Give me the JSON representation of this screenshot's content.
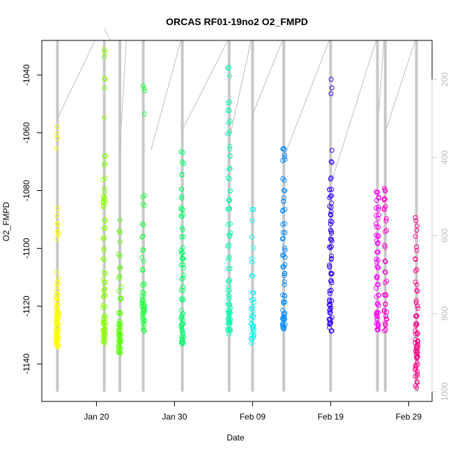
{
  "chart_data": {
    "type": "scatter",
    "title": "ORCAS RF01-19no2 O2_FMPD",
    "xlabel": "Date",
    "ylabel": "O2_FMPD",
    "x_ticks": [
      "Jan 20",
      "Jan 30",
      "Feb 09",
      "Feb 19",
      "Feb 29"
    ],
    "y_ticks": [
      -1040,
      -1060,
      -1080,
      -1100,
      -1120,
      -1140
    ],
    "y2_ticks": [
      200,
      400,
      600,
      800,
      1000
    ],
    "ylim": [
      -1153,
      -1028
    ],
    "y2lim": [
      1025,
      100
    ],
    "xlim": [
      "2016-01-13",
      "2016-03-03"
    ],
    "grid": false,
    "legend": "none",
    "series": [
      {
        "date": "2016-01-15",
        "color": "#ffff00",
        "points": [
          [
            -1058,
            1
          ],
          [
            -1060,
            1
          ],
          [
            -1062,
            1
          ],
          [
            -1066,
            1
          ],
          [
            -1086,
            1
          ],
          [
            -1089,
            1
          ],
          [
            -1091,
            2
          ],
          [
            -1094,
            2
          ],
          [
            -1096,
            2
          ],
          [
            -1108,
            1
          ],
          [
            -1110,
            1
          ],
          [
            -1112,
            2
          ],
          [
            -1114,
            2
          ],
          [
            -1116,
            3
          ],
          [
            -1118,
            4
          ],
          [
            -1120,
            5
          ],
          [
            -1122,
            6
          ],
          [
            -1124,
            8
          ],
          [
            -1126,
            8
          ],
          [
            -1128,
            9
          ],
          [
            -1130,
            10
          ],
          [
            -1132,
            8
          ],
          [
            -1134,
            5
          ]
        ]
      },
      {
        "date": "2016-01-21",
        "color": "#88ff00",
        "points": [
          [
            -1032,
            2
          ],
          [
            -1034,
            1
          ],
          [
            -1042,
            2
          ],
          [
            -1045,
            1
          ],
          [
            -1054,
            1
          ],
          [
            -1068,
            2
          ],
          [
            -1071,
            2
          ],
          [
            -1076,
            2
          ],
          [
            -1080,
            2
          ],
          [
            -1082,
            3
          ],
          [
            -1084,
            3
          ],
          [
            -1086,
            2
          ],
          [
            -1090,
            2
          ],
          [
            -1093,
            2
          ],
          [
            -1096,
            2
          ],
          [
            -1100,
            2
          ],
          [
            -1104,
            2
          ],
          [
            -1108,
            2
          ],
          [
            -1111,
            3
          ],
          [
            -1114,
            3
          ],
          [
            -1117,
            3
          ],
          [
            -1120,
            3
          ],
          [
            -1124,
            4
          ],
          [
            -1126,
            5
          ],
          [
            -1128,
            6
          ],
          [
            -1130,
            6
          ],
          [
            -1132,
            5
          ]
        ]
      },
      {
        "date": "2016-01-23",
        "color": "#55ff00",
        "points": [
          [
            -1090,
            1
          ],
          [
            -1094,
            2
          ],
          [
            -1098,
            1
          ],
          [
            -1102,
            2
          ],
          [
            -1106,
            2
          ],
          [
            -1110,
            2
          ],
          [
            -1114,
            2
          ],
          [
            -1118,
            3
          ],
          [
            -1122,
            3
          ],
          [
            -1126,
            5
          ],
          [
            -1128,
            6
          ],
          [
            -1130,
            7
          ],
          [
            -1132,
            6
          ],
          [
            -1134,
            5
          ],
          [
            -1136,
            4
          ]
        ]
      },
      {
        "date": "2016-01-26",
        "color": "#22ff44",
        "points": [
          [
            -1044,
            2
          ],
          [
            -1046,
            1
          ],
          [
            -1053,
            1
          ],
          [
            -1082,
            2
          ],
          [
            -1085,
            2
          ],
          [
            -1092,
            2
          ],
          [
            -1096,
            2
          ],
          [
            -1100,
            2
          ],
          [
            -1104,
            2
          ],
          [
            -1108,
            2
          ],
          [
            -1112,
            3
          ],
          [
            -1116,
            4
          ],
          [
            -1118,
            5
          ],
          [
            -1120,
            6
          ],
          [
            -1122,
            6
          ],
          [
            -1124,
            4
          ],
          [
            -1126,
            3
          ],
          [
            -1128,
            2
          ],
          [
            -1129,
            2
          ]
        ]
      },
      {
        "date": "2016-01-31",
        "color": "#00ff66",
        "points": [
          [
            -1067,
            2
          ],
          [
            -1070,
            2
          ],
          [
            -1074,
            2
          ],
          [
            -1079,
            2
          ],
          [
            -1082,
            2
          ],
          [
            -1086,
            3
          ],
          [
            -1089,
            3
          ],
          [
            -1093,
            2
          ],
          [
            -1096,
            2
          ],
          [
            -1100,
            2
          ],
          [
            -1102,
            3
          ],
          [
            -1104,
            3
          ],
          [
            -1106,
            3
          ],
          [
            -1110,
            3
          ],
          [
            -1114,
            3
          ],
          [
            -1118,
            3
          ],
          [
            -1122,
            3
          ],
          [
            -1124,
            4
          ],
          [
            -1126,
            4
          ],
          [
            -1128,
            4
          ],
          [
            -1130,
            4
          ],
          [
            -1132,
            4
          ],
          [
            -1133,
            3
          ]
        ]
      },
      {
        "date": "2016-02-06",
        "color": "#00ffb0",
        "points": [
          [
            -1038,
            2
          ],
          [
            -1041,
            1
          ],
          [
            -1050,
            2
          ],
          [
            -1052,
            2
          ],
          [
            -1056,
            2
          ],
          [
            -1060,
            2
          ],
          [
            -1065,
            2
          ],
          [
            -1068,
            2
          ],
          [
            -1072,
            2
          ],
          [
            -1076,
            2
          ],
          [
            -1080,
            2
          ],
          [
            -1083,
            3
          ],
          [
            -1087,
            3
          ],
          [
            -1091,
            2
          ],
          [
            -1095,
            3
          ],
          [
            -1099,
            2
          ],
          [
            -1103,
            2
          ],
          [
            -1107,
            2
          ],
          [
            -1111,
            3
          ],
          [
            -1114,
            3
          ],
          [
            -1117,
            3
          ],
          [
            -1120,
            4
          ],
          [
            -1122,
            5
          ],
          [
            -1124,
            5
          ],
          [
            -1126,
            5
          ],
          [
            -1128,
            4
          ],
          [
            -1129,
            3
          ]
        ]
      },
      {
        "date": "2016-02-09",
        "color": "#00ffee",
        "points": [
          [
            -1087,
            2
          ],
          [
            -1090,
            1
          ],
          [
            -1096,
            1
          ],
          [
            -1100,
            1
          ],
          [
            -1104,
            2
          ],
          [
            -1110,
            2
          ],
          [
            -1116,
            2
          ],
          [
            -1118,
            3
          ],
          [
            -1121,
            3
          ],
          [
            -1124,
            4
          ],
          [
            -1126,
            4
          ],
          [
            -1128,
            4
          ],
          [
            -1130,
            4
          ],
          [
            -1132,
            3
          ]
        ]
      },
      {
        "date": "2016-02-13",
        "color": "#0088ff",
        "points": [
          [
            -1066,
            3
          ],
          [
            -1068,
            2
          ],
          [
            -1070,
            2
          ],
          [
            -1076,
            2
          ],
          [
            -1080,
            2
          ],
          [
            -1083,
            3
          ],
          [
            -1087,
            3
          ],
          [
            -1091,
            2
          ],
          [
            -1094,
            2
          ],
          [
            -1097,
            2
          ],
          [
            -1100,
            2
          ],
          [
            -1103,
            3
          ],
          [
            -1106,
            3
          ],
          [
            -1109,
            3
          ],
          [
            -1112,
            2
          ],
          [
            -1116,
            3
          ],
          [
            -1119,
            3
          ],
          [
            -1122,
            4
          ],
          [
            -1124,
            5
          ],
          [
            -1126,
            5
          ],
          [
            -1128,
            4
          ]
        ]
      },
      {
        "date": "2016-02-19",
        "color": "#3300ff",
        "points": [
          [
            -1042,
            1
          ],
          [
            -1044,
            1
          ],
          [
            -1046,
            1
          ],
          [
            -1066,
            1
          ],
          [
            -1070,
            2
          ],
          [
            -1076,
            2
          ],
          [
            -1079,
            3
          ],
          [
            -1082,
            3
          ],
          [
            -1085,
            3
          ],
          [
            -1088,
            3
          ],
          [
            -1091,
            3
          ],
          [
            -1094,
            3
          ],
          [
            -1097,
            3
          ],
          [
            -1100,
            3
          ],
          [
            -1103,
            3
          ],
          [
            -1106,
            3
          ],
          [
            -1109,
            3
          ],
          [
            -1112,
            3
          ],
          [
            -1115,
            3
          ],
          [
            -1118,
            3
          ],
          [
            -1120,
            4
          ],
          [
            -1122,
            4
          ],
          [
            -1124,
            4
          ],
          [
            -1126,
            4
          ],
          [
            -1128,
            3
          ]
        ]
      },
      {
        "date": "2016-02-25",
        "color": "#ff00ff",
        "points": [
          [
            -1080,
            3
          ],
          [
            -1083,
            3
          ],
          [
            -1086,
            3
          ],
          [
            -1089,
            3
          ],
          [
            -1092,
            3
          ],
          [
            -1095,
            3
          ],
          [
            -1098,
            3
          ],
          [
            -1101,
            3
          ],
          [
            -1104,
            3
          ],
          [
            -1107,
            3
          ],
          [
            -1110,
            3
          ],
          [
            -1113,
            3
          ],
          [
            -1116,
            3
          ],
          [
            -1119,
            3
          ],
          [
            -1122,
            4
          ],
          [
            -1124,
            4
          ],
          [
            -1126,
            4
          ],
          [
            -1128,
            4
          ]
        ]
      },
      {
        "date": "2016-02-26",
        "color": "#ff00cc",
        "points": [
          [
            -1080,
            3
          ],
          [
            -1083,
            3
          ],
          [
            -1086,
            3
          ],
          [
            -1090,
            2
          ],
          [
            -1094,
            2
          ],
          [
            -1099,
            2
          ],
          [
            -1104,
            2
          ],
          [
            -1108,
            2
          ],
          [
            -1112,
            2
          ],
          [
            -1116,
            3
          ],
          [
            -1119,
            3
          ],
          [
            -1122,
            3
          ],
          [
            -1124,
            3
          ],
          [
            -1126,
            3
          ],
          [
            -1128,
            2
          ]
        ]
      },
      {
        "date": "2016-03-01",
        "color": "#ff0088",
        "points": [
          [
            -1090,
            2
          ],
          [
            -1093,
            2
          ],
          [
            -1096,
            1
          ],
          [
            -1100,
            2
          ],
          [
            -1104,
            2
          ],
          [
            -1108,
            2
          ],
          [
            -1112,
            2
          ],
          [
            -1115,
            2
          ],
          [
            -1118,
            2
          ],
          [
            -1120,
            2
          ],
          [
            -1123,
            3
          ],
          [
            -1126,
            4
          ],
          [
            -1129,
            4
          ],
          [
            -1132,
            5
          ],
          [
            -1134,
            5
          ],
          [
            -1136,
            5
          ],
          [
            -1138,
            5
          ],
          [
            -1140,
            4
          ],
          [
            -1142,
            3
          ],
          [
            -1144,
            3
          ],
          [
            -1146,
            2
          ],
          [
            -1148,
            2
          ]
        ]
      }
    ],
    "flight_profiles": [
      {
        "start": "2016-01-15",
        "end": "2016-01-20",
        "bottom": 300
      },
      {
        "start": "2016-01-21",
        "end": "2016-01-22",
        "bottom": 70
      },
      {
        "start": "2016-01-23",
        "end": "2016-01-24",
        "bottom": 380
      },
      {
        "start": "2016-01-26",
        "end": "2016-01-26",
        "bottom": 100
      },
      {
        "start": "2016-01-27",
        "end": "2016-01-31",
        "bottom": 380
      },
      {
        "start": "2016-01-31",
        "end": "2016-02-06",
        "bottom": 330
      },
      {
        "start": "2016-02-06",
        "end": "2016-02-09",
        "bottom": 355
      },
      {
        "start": "2016-02-09",
        "end": "2016-02-13",
        "bottom": 290
      },
      {
        "start": "2016-02-13",
        "end": "2016-02-19",
        "bottom": 400
      },
      {
        "start": "2016-02-19",
        "end": "2016-02-25",
        "bottom": 470
      },
      {
        "start": "2016-02-25",
        "end": "2016-02-26",
        "bottom": 330
      },
      {
        "start": "2016-02-26",
        "end": "2016-03-01",
        "bottom": 335
      }
    ]
  }
}
